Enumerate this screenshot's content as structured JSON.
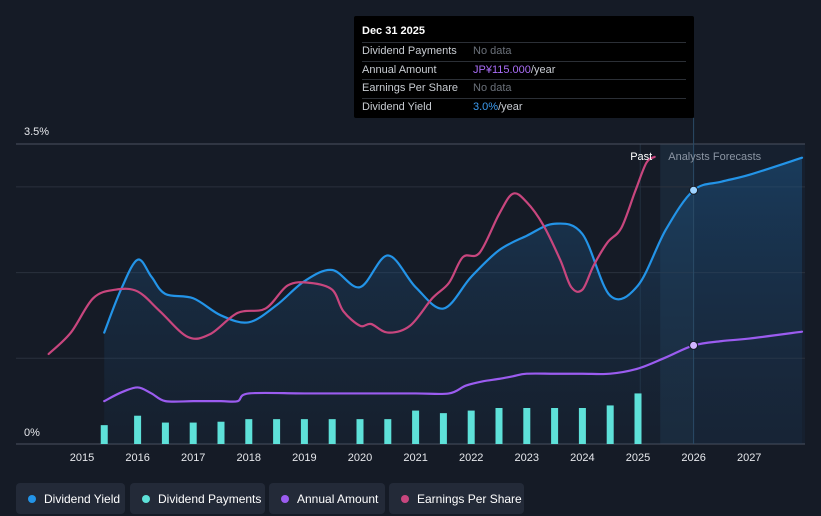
{
  "tooltip": {
    "title": "Dec 31 2025",
    "rows": [
      {
        "label": "Dividend Payments",
        "value": "No data"
      },
      {
        "label": "Annual Amount",
        "value": "JP¥115.000",
        "suffix": "/year"
      },
      {
        "label": "Earnings Per Share",
        "value": "No data"
      },
      {
        "label": "Dividend Yield",
        "value": "3.0%",
        "suffix": "/year"
      }
    ]
  },
  "legend": [
    {
      "label": "Dividend Yield",
      "color": "#2394e8"
    },
    {
      "label": "Dividend Payments",
      "color": "#5ee1d9"
    },
    {
      "label": "Annual Amount",
      "color": "#9b5cf0"
    },
    {
      "label": "Earnings Per Share",
      "color": "#c8467e"
    }
  ],
  "chart_data": {
    "type": "line",
    "y_top_label": "3.5%",
    "y_bottom_label": "0%",
    "ylim": [
      0,
      3.5
    ],
    "xlim": [
      2014.4,
      2027.95
    ],
    "x_ticks": [
      "2015",
      "2016",
      "2017",
      "2018",
      "2019",
      "2020",
      "2021",
      "2022",
      "2023",
      "2024",
      "2025",
      "2026",
      "2027"
    ],
    "past_label": "Past",
    "forecast_label": "Analysts Forecasts",
    "forecast_start": 2025.4,
    "highlight_x": 2026.0,
    "series": [
      {
        "name": "Dividend Yield",
        "unit": "%",
        "color": "#2394e8",
        "x": [
          2015.4,
          2015.7,
          2016.0,
          2016.25,
          2016.5,
          2017.0,
          2017.5,
          2018.0,
          2018.5,
          2019.0,
          2019.5,
          2020.0,
          2020.5,
          2021.0,
          2021.5,
          2022.0,
          2022.5,
          2023.0,
          2023.5,
          2024.0,
          2024.5,
          2025.0,
          2025.5,
          2026.0,
          2026.5,
          2027.0,
          2027.95
        ],
        "values": [
          1.3,
          1.8,
          2.15,
          1.95,
          1.75,
          1.7,
          1.5,
          1.42,
          1.62,
          1.9,
          2.03,
          1.83,
          2.2,
          1.83,
          1.58,
          1.95,
          2.26,
          2.43,
          2.57,
          2.45,
          1.73,
          1.85,
          2.5,
          2.96,
          3.06,
          3.14,
          3.34
        ]
      },
      {
        "name": "Earnings Per Share",
        "color": "#c8467e",
        "x": [
          2014.4,
          2014.8,
          2015.2,
          2015.6,
          2016.0,
          2016.4,
          2016.9,
          2017.3,
          2017.8,
          2018.3,
          2018.7,
          2019.1,
          2019.5,
          2019.7,
          2020.0,
          2020.2,
          2020.5,
          2020.9,
          2021.3,
          2021.6,
          2021.85,
          2022.15,
          2022.5,
          2022.75,
          2023.0,
          2023.3,
          2023.6,
          2023.8,
          2024.0,
          2024.2,
          2024.45,
          2024.7,
          2024.95,
          2025.15,
          2025.3
        ],
        "values": [
          1.05,
          1.3,
          1.7,
          1.8,
          1.78,
          1.55,
          1.25,
          1.28,
          1.53,
          1.58,
          1.85,
          1.88,
          1.8,
          1.55,
          1.38,
          1.4,
          1.3,
          1.38,
          1.7,
          1.88,
          2.18,
          2.23,
          2.68,
          2.92,
          2.82,
          2.55,
          2.15,
          1.83,
          1.8,
          2.08,
          2.35,
          2.52,
          2.95,
          3.28,
          3.35
        ]
      },
      {
        "name": "Annual Amount",
        "unit": "JP¥",
        "color": "#9b5cf0",
        "x": [
          2015.4,
          2015.7,
          2016.0,
          2016.25,
          2016.5,
          2017.0,
          2017.5,
          2017.8,
          2018.0,
          2019.0,
          2020.0,
          2021.0,
          2021.6,
          2021.9,
          2022.2,
          2022.5,
          2022.75,
          2023.0,
          2023.5,
          2024.0,
          2024.5,
          2025.0,
          2025.5,
          2026.0,
          2026.5,
          2027.0,
          2027.95
        ],
        "values": [
          0.5,
          0.6,
          0.66,
          0.59,
          0.5,
          0.5,
          0.5,
          0.5,
          0.59,
          0.59,
          0.59,
          0.59,
          0.59,
          0.68,
          0.73,
          0.76,
          0.79,
          0.82,
          0.82,
          0.82,
          0.82,
          0.88,
          1.01,
          1.15,
          1.2,
          1.23,
          1.31
        ]
      },
      {
        "name": "Dividend Payments",
        "type": "bar",
        "color": "#5ee1d9",
        "x": [
          2015.4,
          2016.0,
          2016.5,
          2017.0,
          2017.5,
          2018.0,
          2018.5,
          2019.0,
          2019.5,
          2020.0,
          2020.5,
          2021.0,
          2021.5,
          2022.0,
          2022.5,
          2023.0,
          2023.5,
          2024.0,
          2024.5,
          2025.0
        ],
        "values": [
          0.22,
          0.33,
          0.25,
          0.25,
          0.26,
          0.29,
          0.29,
          0.29,
          0.29,
          0.29,
          0.29,
          0.39,
          0.36,
          0.39,
          0.42,
          0.42,
          0.42,
          0.42,
          0.45,
          0.59
        ]
      }
    ]
  }
}
